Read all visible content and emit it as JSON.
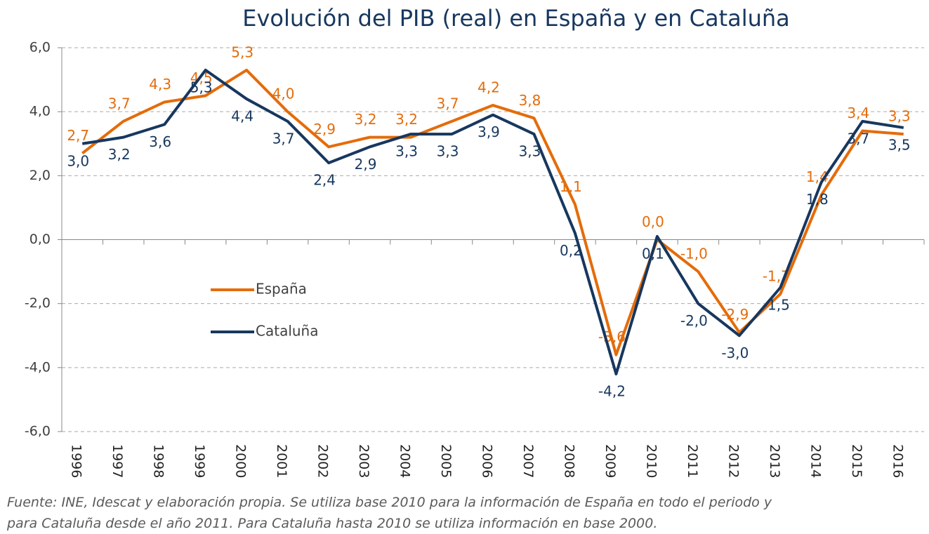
{
  "chart_data": {
    "type": "line",
    "title": "Evolución del PIB (real) en España y en Cataluña",
    "categories": [
      "1996",
      "1997",
      "1998",
      "1999",
      "2000",
      "2001",
      "2002",
      "2003",
      "2004",
      "2005",
      "2006",
      "2007",
      "2008",
      "2009",
      "2010",
      "2011",
      "2012",
      "2013",
      "2014",
      "2015",
      "2016"
    ],
    "series": [
      {
        "name": "España",
        "color": "#e46c0a",
        "values": [
          2.7,
          3.7,
          4.3,
          4.5,
          5.3,
          4.0,
          2.9,
          3.2,
          3.2,
          3.7,
          4.2,
          3.8,
          1.1,
          -3.6,
          0.0,
          -1.0,
          -2.9,
          -1.7,
          1.4,
          3.4,
          3.3
        ],
        "value_labels": [
          "2,7",
          "3,7",
          "4,3",
          "4,5",
          "5,3",
          "4,0",
          "2,9",
          "3,2",
          "3,2",
          "3,7",
          "4,2",
          "3,8",
          "1,1",
          "-3,6",
          "0,0",
          "-1,0",
          "-2,9",
          "-1,7",
          "1,4",
          "3,4",
          "3,3"
        ]
      },
      {
        "name": "Cataluña",
        "color": "#17375e",
        "values": [
          3.0,
          3.2,
          3.6,
          5.3,
          4.4,
          3.7,
          2.4,
          2.9,
          3.3,
          3.3,
          3.9,
          3.3,
          0.2,
          -4.2,
          0.1,
          -2.0,
          -3.0,
          -1.5,
          1.8,
          3.7,
          3.5
        ],
        "value_labels": [
          "3,0",
          "3,2",
          "3,6",
          "5,3",
          "4,4",
          "3,7",
          "2,4",
          "2,9",
          "3,3",
          "3,3",
          "3,9",
          "3,3",
          "0,2",
          "-4,2",
          "0,1",
          "-2,0",
          "-3,0",
          "-1,5",
          "1,8",
          "3,7",
          "3,5"
        ]
      }
    ],
    "ylim": [
      -6,
      6
    ],
    "yticks": [
      {
        "value": -6,
        "label": "-6,0"
      },
      {
        "value": -4,
        "label": "-4,0"
      },
      {
        "value": -2,
        "label": "-2,0"
      },
      {
        "value": 0,
        "label": "0,0"
      },
      {
        "value": 2,
        "label": "2,0"
      },
      {
        "value": 4,
        "label": "4,0"
      },
      {
        "value": 6,
        "label": "6,0"
      }
    ],
    "grid": true,
    "footnote": [
      "Fuente: INE, Idescat y elaboración propia.  Se utiliza base 2010 para la información de España en todo el periodo y",
      "para Cataluña desde el año 2011. Para Cataluña hasta 2010 se utiliza información en base 2000."
    ]
  }
}
